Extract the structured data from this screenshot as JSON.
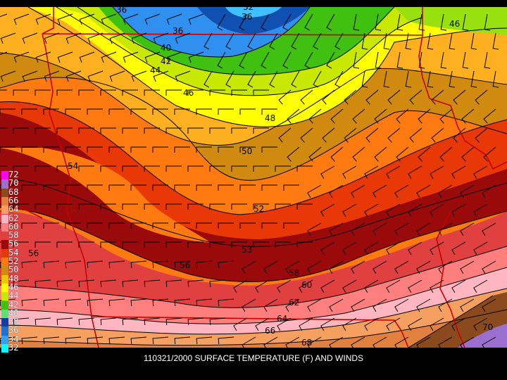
{
  "caption": "110321/2000 SURFACE TEMPERATURE (F) AND WINDS",
  "legend": [
    {
      "label": "72",
      "color": "#ff00ff"
    },
    {
      "label": "70",
      "color": "#9b6fd0"
    },
    {
      "label": "68",
      "color": "#8b4a1e"
    },
    {
      "label": "66",
      "color": "#e28040"
    },
    {
      "label": "64",
      "color": "#f5a060"
    },
    {
      "label": "62",
      "color": "#ffb6c1"
    },
    {
      "label": "60",
      "color": "#ff7f7f"
    },
    {
      "label": "58",
      "color": "#e04040"
    },
    {
      "label": "56",
      "color": "#9b0a0a"
    },
    {
      "label": "54",
      "color": "#e83808"
    },
    {
      "label": "52",
      "color": "#ff7a10"
    },
    {
      "label": "50",
      "color": "#d08a10"
    },
    {
      "label": "48",
      "color": "#f0c800"
    },
    {
      "label": "46",
      "color": "#ffff00"
    },
    {
      "label": "44",
      "color": "#c8e800"
    },
    {
      "label": "42",
      "color": "#40c010"
    },
    {
      "label": "40",
      "color": "#60e070"
    },
    {
      "label": "38",
      "color": "#1040a0"
    },
    {
      "label": "36",
      "color": "#2070d0"
    },
    {
      "label": "34",
      "color": "#30a0f0"
    },
    {
      "label": "32",
      "color": "#00ffff"
    }
  ],
  "contour_labels": [
    {
      "text": "36"
    },
    {
      "text": "32"
    },
    {
      "text": "36"
    },
    {
      "text": "36"
    },
    {
      "text": "40"
    },
    {
      "text": "42"
    },
    {
      "text": "44"
    },
    {
      "text": "46"
    },
    {
      "text": "48"
    },
    {
      "text": "50"
    },
    {
      "text": "52"
    },
    {
      "text": "53"
    },
    {
      "text": "54"
    },
    {
      "text": "56"
    },
    {
      "text": "58"
    },
    {
      "text": "60"
    },
    {
      "text": "62"
    },
    {
      "text": "64"
    },
    {
      "text": "66"
    },
    {
      "text": "68"
    },
    {
      "text": "70"
    },
    {
      "text": "46"
    },
    {
      "text": "56"
    }
  ]
}
